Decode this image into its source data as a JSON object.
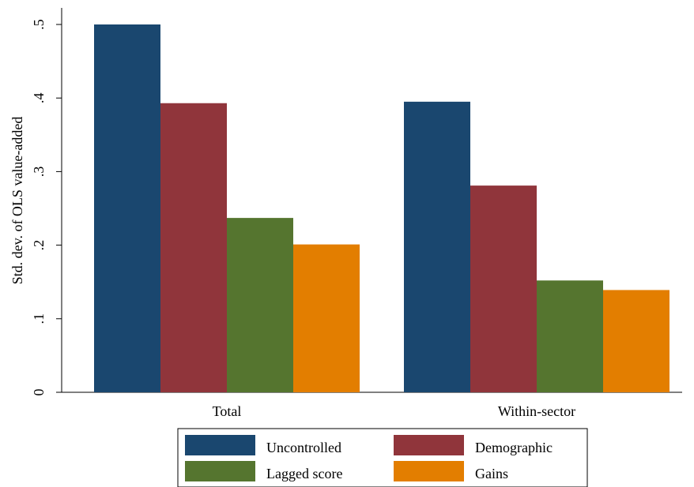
{
  "chart_data": {
    "type": "bar",
    "categories": [
      "Total",
      "Within-sector"
    ],
    "series": [
      {
        "name": "Uncontrolled",
        "values": [
          0.5,
          0.395
        ],
        "color": "#1a476f"
      },
      {
        "name": "Demographic",
        "values": [
          0.393,
          0.281
        ],
        "color": "#90353b"
      },
      {
        "name": "Lagged score",
        "values": [
          0.237,
          0.152
        ],
        "color": "#55752f"
      },
      {
        "name": "Gains",
        "values": [
          0.201,
          0.139
        ],
        "color": "#e37e00"
      }
    ],
    "ylabel": "Std. dev. of OLS value-added",
    "xlabel": "",
    "ylim": [
      0,
      0.5
    ],
    "yticks": [
      {
        "value": 0,
        "label": "0"
      },
      {
        "value": 0.1,
        "label": ".1"
      },
      {
        "value": 0.2,
        "label": ".2"
      },
      {
        "value": 0.3,
        "label": ".3"
      },
      {
        "value": 0.4,
        "label": ".4"
      },
      {
        "value": 0.5,
        "label": ".5"
      }
    ],
    "grid": false,
    "legend_position": "bottom"
  }
}
